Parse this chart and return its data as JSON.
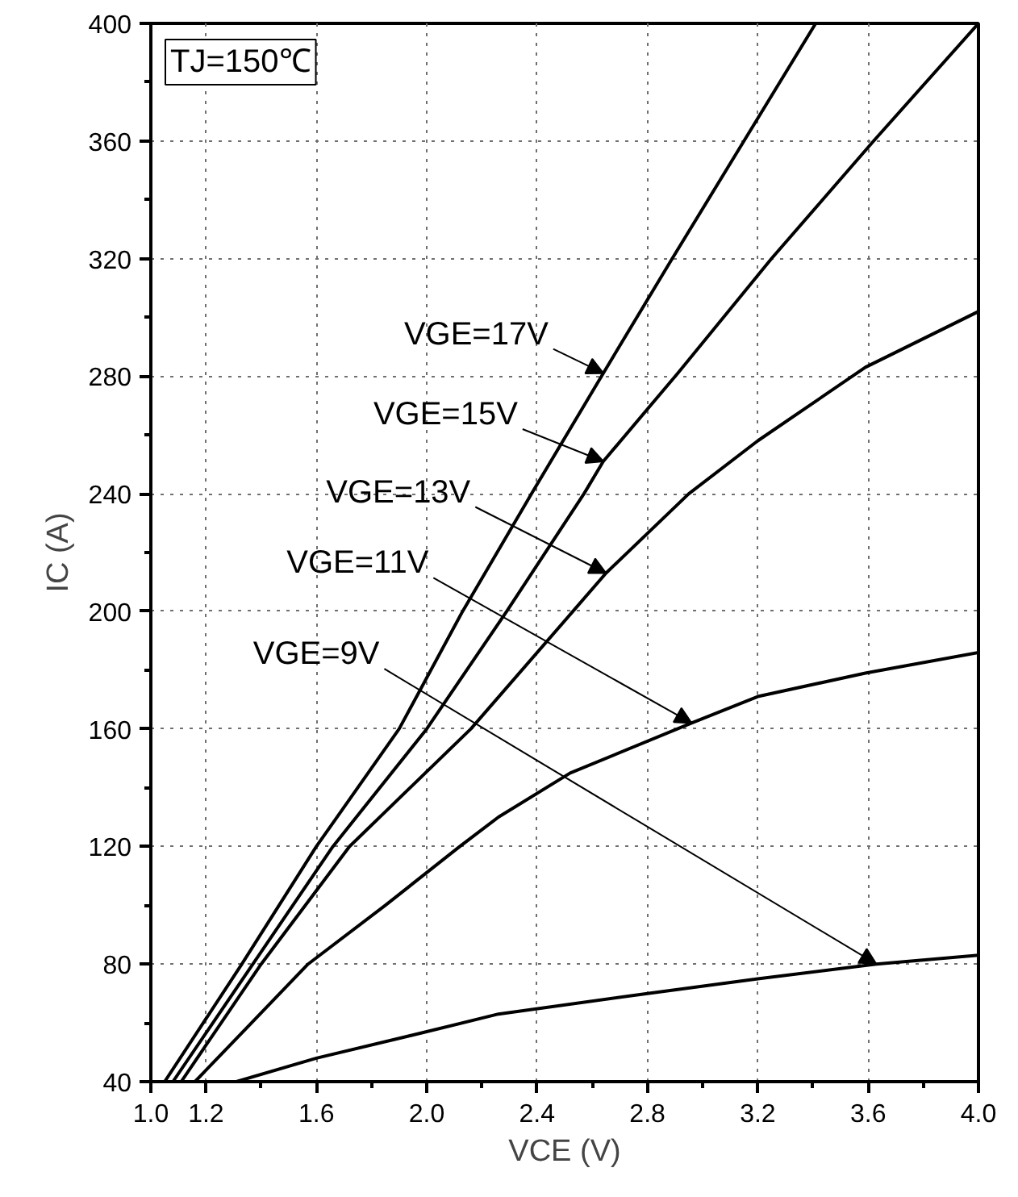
{
  "chart_data": {
    "type": "line",
    "xlabel": "VCE (V)",
    "ylabel": "IC (A)",
    "xlim": [
      1.0,
      4.0
    ],
    "ylim": [
      40,
      400
    ],
    "xticks": [
      {
        "value": 1.0,
        "label": "1.0"
      },
      1.2,
      {
        "value": 1.4,
        "label": null
      },
      1.6,
      {
        "value": 1.8,
        "label": null
      },
      {
        "value": 2.0,
        "label": "2.0"
      },
      {
        "value": 2.2,
        "label": null
      },
      2.4,
      {
        "value": 2.6,
        "label": null
      },
      2.8,
      {
        "value": 3.0,
        "label": null
      },
      3.2,
      {
        "value": 3.4,
        "label": null
      },
      3.6,
      {
        "value": 3.8,
        "label": null
      },
      {
        "value": 4.0,
        "label": "4.0"
      }
    ],
    "yticks": [
      40,
      {
        "value": 60,
        "label": null
      },
      80,
      {
        "value": 100,
        "label": null
      },
      120,
      {
        "value": 140,
        "label": null
      },
      160,
      {
        "value": 180,
        "label": null
      },
      200,
      {
        "value": 220,
        "label": null
      },
      240,
      {
        "value": 260,
        "label": null
      },
      280,
      {
        "value": 300,
        "label": null
      },
      320,
      {
        "value": 340,
        "label": null
      },
      360,
      {
        "value": 380,
        "label": null
      },
      400
    ],
    "grid": true,
    "marker": "none",
    "line_style": "solid",
    "series": [
      {
        "color": "#000000",
        "x": [
          1.05,
          1.33,
          1.6,
          1.9,
          2.13,
          2.38,
          2.64,
          2.89,
          3.15,
          3.41
        ],
        "values": [
          40,
          80,
          120,
          160,
          200,
          240,
          281,
          320,
          360,
          400
        ]
      },
      {
        "color": "#000000",
        "x": [
          1.08,
          1.37,
          1.66,
          2.0,
          2.29,
          2.57,
          2.64,
          2.91,
          3.25,
          3.62,
          4.0
        ],
        "values": [
          40,
          80,
          120,
          160,
          200,
          240,
          251,
          281,
          320,
          360,
          400
        ]
      },
      {
        "color": "#000000",
        "x": [
          1.11,
          1.4,
          1.72,
          2.16,
          2.53,
          2.65,
          2.95,
          3.2,
          3.59,
          4.0
        ],
        "values": [
          40,
          80,
          120,
          160,
          200,
          213,
          240,
          258,
          283,
          302
        ]
      },
      {
        "color": "#000000",
        "x": [
          1.16,
          1.57,
          1.85,
          2.12,
          2.26,
          2.52,
          2.96,
          3.2,
          3.59,
          4.0
        ],
        "values": [
          40,
          80,
          100,
          120,
          130,
          145,
          162,
          171,
          179,
          186
        ]
      },
      {
        "color": "#000000",
        "x": [
          1.31,
          1.6,
          2.0,
          2.26,
          2.8,
          3.2,
          3.63,
          4.0
        ],
        "values": [
          40,
          48,
          57,
          63,
          70,
          75,
          80,
          83
        ]
      }
    ],
    "annotations": [
      "TJ=150℃",
      {
        "text": "VGE=17V",
        "x": 2.64,
        "y": 281
      },
      {
        "text": "VGE=15V",
        "x": 2.64,
        "y": 251
      },
      {
        "text": "VGE=13V",
        "x": 2.65,
        "y": 213
      },
      {
        "text": "VGE=11V",
        "x": 2.96,
        "y": 162
      },
      {
        "text": "VGE=9V",
        "x": 3.63,
        "y": 80
      }
    ]
  }
}
